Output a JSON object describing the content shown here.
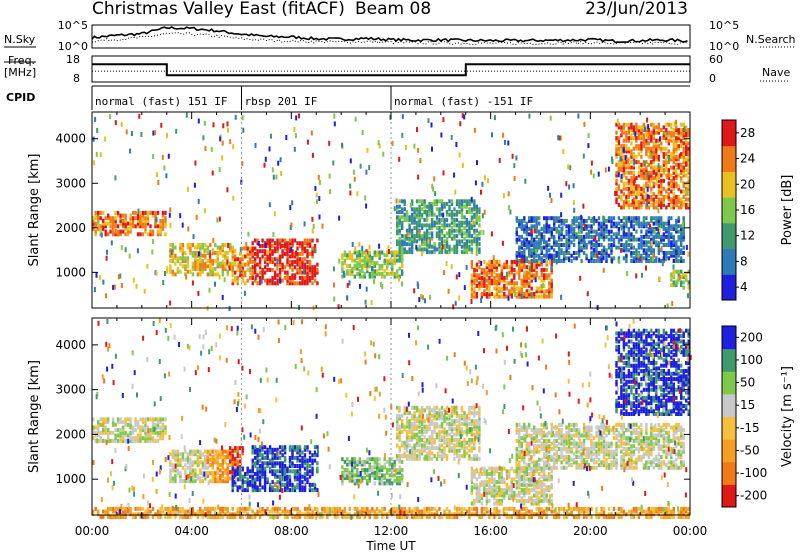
{
  "header": {
    "title": "Christmas Valley East (fitACF)",
    "beam": "Beam 08",
    "date": "23/Jun/2013"
  },
  "chart_data": [
    {
      "type": "line",
      "panel": "noise",
      "ylabel_left": "N.Sky",
      "ylabel_right": "N.Search",
      "y_ticks_left": [
        "10^5",
        "10^0"
      ],
      "y_ticks_right": [
        "10^5",
        "10^0"
      ],
      "series": [
        {
          "name": "N.Sky",
          "style": "solid",
          "x": [
            0,
            1,
            2,
            3,
            4,
            5,
            6,
            7,
            8,
            9,
            10,
            11,
            12,
            13,
            14,
            15,
            16,
            17,
            18,
            19,
            20,
            21,
            22,
            23,
            24
          ],
          "y": [
            0.45,
            0.55,
            0.62,
            0.88,
            0.85,
            0.75,
            0.6,
            0.5,
            0.48,
            0.4,
            0.38,
            0.42,
            0.36,
            0.34,
            0.35,
            0.33,
            0.32,
            0.32,
            0.33,
            0.34,
            0.36,
            0.3,
            0.32,
            0.35,
            0.3
          ]
        },
        {
          "name": "N.Search",
          "style": "dotted",
          "x": [
            0,
            1,
            2,
            3,
            4,
            5,
            6,
            7,
            8,
            9,
            10,
            11,
            12,
            13,
            14,
            15,
            16,
            17,
            18,
            19,
            20,
            21,
            22,
            23,
            24
          ],
          "y": [
            0.3,
            0.38,
            0.45,
            0.62,
            0.6,
            0.52,
            0.4,
            0.34,
            0.3,
            0.28,
            0.26,
            0.28,
            0.24,
            0.22,
            0.22,
            0.21,
            0.2,
            0.2,
            0.21,
            0.22,
            0.23,
            0.2,
            0.21,
            0.22,
            0.2
          ]
        }
      ]
    },
    {
      "type": "line",
      "panel": "frequency",
      "ylabel_left": "Freq. [MHz]",
      "ylabel_right": "Nave",
      "y_ticks_left": [
        "18",
        "8"
      ],
      "y_ticks_right": [
        "60",
        "0"
      ],
      "series": [
        {
          "name": "Freq.",
          "style": "solid",
          "x": [
            0,
            3,
            3,
            15,
            15,
            24
          ],
          "y": [
            14.8,
            14.8,
            10.6,
            10.6,
            14.8,
            14.8
          ]
        },
        {
          "name": "Nave",
          "style": "dotted",
          "x": [
            0,
            24
          ],
          "y": [
            12.2,
            12.2
          ]
        }
      ]
    },
    {
      "type": "text",
      "panel": "cpid",
      "label": "CPID",
      "segments": [
        {
          "start": 0,
          "end": 6,
          "text": "normal (fast) 151 IF"
        },
        {
          "start": 6,
          "end": 12,
          "text": "rbsp 201 IF"
        },
        {
          "start": 12,
          "end": 24,
          "text": "normal (fast) -151 IF"
        }
      ]
    },
    {
      "type": "heatmap",
      "panel": "power",
      "ylabel": "Slant Range [km]",
      "y_ticks": [
        1000,
        2000,
        3000,
        4000
      ],
      "ylim": [
        200,
        4600
      ],
      "xlim": [
        0,
        24
      ],
      "colorbar_label": "Power [dB]",
      "colorbar_ticks": [
        "4",
        "8",
        "12",
        "16",
        "20",
        "24",
        "28"
      ],
      "colors": [
        "#1f1fe0",
        "#2f7ab8",
        "#3e9a6c",
        "#7ec84a",
        "#e8c020",
        "#f07a18",
        "#e01818"
      ],
      "blobs": [
        {
          "x0": 0,
          "x1": 3,
          "y0": 1900,
          "y1": 2400,
          "level": 5
        },
        {
          "x0": 3.1,
          "x1": 5.6,
          "y0": 1000,
          "y1": 1700,
          "level": 4
        },
        {
          "x0": 5.6,
          "x1": 6.4,
          "y0": 800,
          "y1": 1600,
          "level": 5
        },
        {
          "x0": 6.4,
          "x1": 9.0,
          "y0": 800,
          "y1": 1800,
          "level": 6
        },
        {
          "x0": 10,
          "x1": 12.4,
          "y0": 950,
          "y1": 1500,
          "level": 3
        },
        {
          "x0": 12.2,
          "x1": 15.5,
          "y0": 1500,
          "y1": 2700,
          "level": 2
        },
        {
          "x0": 15.2,
          "x1": 18.5,
          "y0": 500,
          "y1": 1300,
          "level": 5
        },
        {
          "x0": 17,
          "x1": 23.8,
          "y0": 1300,
          "y1": 2300,
          "level": 1
        },
        {
          "x0": 21,
          "x1": 24,
          "y0": 2500,
          "y1": 4400,
          "level": 5
        },
        {
          "x0": 23.2,
          "x1": 24,
          "y0": 700,
          "y1": 1100,
          "level": 3
        }
      ]
    },
    {
      "type": "heatmap",
      "panel": "velocity",
      "ylabel": "Slant Range [km]",
      "y_ticks": [
        1000,
        2000,
        3000,
        4000
      ],
      "ylim": [
        200,
        4600
      ],
      "xlim": [
        0,
        24
      ],
      "xlabel": "Time UT",
      "x_ticks": [
        "00:00",
        "04:00",
        "08:00",
        "12:00",
        "16:00",
        "20:00",
        "00:00"
      ],
      "colorbar_label": "Velocity [m s⁻¹]",
      "colorbar_ticks": [
        "-200",
        "-100",
        "-50",
        "-15",
        "15",
        "50",
        "100",
        "200"
      ],
      "colors": [
        "#e01818",
        "#f07a18",
        "#f5a020",
        "#f5c040",
        "#c8c8c8",
        "#7ec84a",
        "#3e9a6c",
        "#1f1fe0"
      ],
      "blobs": [
        {
          "x0": 0,
          "x1": 3,
          "y0": 1900,
          "y1": 2400,
          "level": 4
        },
        {
          "x0": 3.1,
          "x1": 4.6,
          "y0": 1000,
          "y1": 1700,
          "level": 4
        },
        {
          "x0": 4.6,
          "x1": 5.6,
          "y0": 1000,
          "y1": 1700,
          "level": 2
        },
        {
          "x0": 5.5,
          "x1": 6.0,
          "y0": 1200,
          "y1": 1800,
          "level": 0
        },
        {
          "x0": 5.6,
          "x1": 6.4,
          "y0": 800,
          "y1": 1300,
          "level": 7
        },
        {
          "x0": 6.4,
          "x1": 9.0,
          "y0": 800,
          "y1": 1800,
          "level": 7
        },
        {
          "x0": 10,
          "x1": 12.4,
          "y0": 950,
          "y1": 1500,
          "level": 5
        },
        {
          "x0": 12.2,
          "x1": 15.5,
          "y0": 1500,
          "y1": 2700,
          "level": 4
        },
        {
          "x0": 15.2,
          "x1": 18.5,
          "y0": 500,
          "y1": 1300,
          "level": 4
        },
        {
          "x0": 17,
          "x1": 23.8,
          "y0": 1300,
          "y1": 2300,
          "level": 4
        },
        {
          "x0": 21,
          "x1": 24,
          "y0": 2500,
          "y1": 4400,
          "level": 7
        },
        {
          "x0": 0,
          "x1": 24,
          "y0": 200,
          "y1": 400,
          "level": 2
        }
      ]
    }
  ]
}
